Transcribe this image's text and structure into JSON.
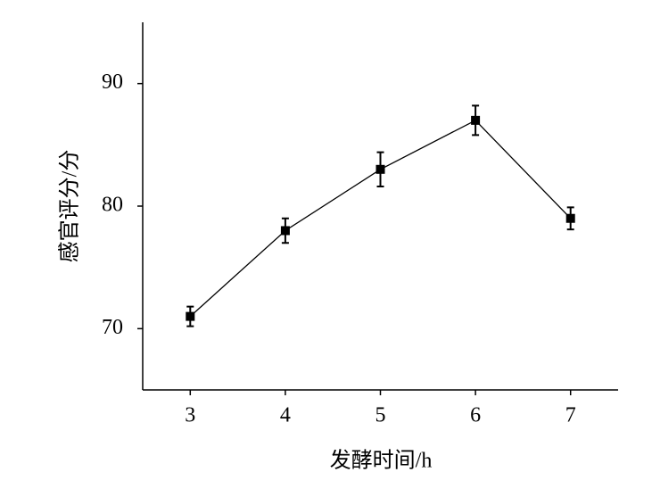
{
  "chart_data": {
    "type": "line",
    "x_label": "发酵时间/h",
    "y_label": "感官评分/分",
    "x": [
      3,
      4,
      5,
      6,
      7
    ],
    "series": [
      {
        "color": "#000000",
        "values": [
          71,
          78,
          83,
          87,
          79
        ],
        "errors": [
          0.8,
          1.0,
          1.4,
          1.2,
          0.9
        ]
      }
    ],
    "xlim": [
      2.5,
      7.5
    ],
    "xticks": [
      3,
      4,
      5,
      6,
      7
    ],
    "ylim": [
      65,
      95
    ],
    "yticks": [
      70,
      80,
      90
    ],
    "grid": false
  }
}
